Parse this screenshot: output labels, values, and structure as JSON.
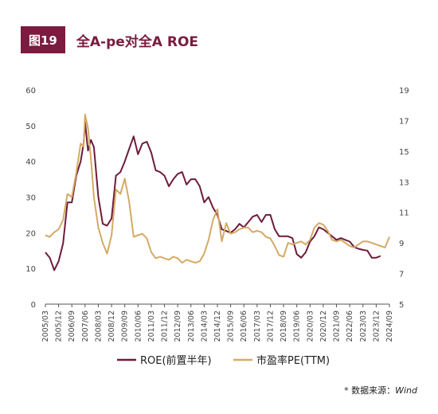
{
  "figure": {
    "badge": "图19",
    "title": "全A-pe对全A ROE",
    "source_prefix": "* 数据来源：",
    "source_name": "Wind"
  },
  "colors": {
    "accent": "#7a1b3f",
    "roe": "#6e1b3c",
    "pe": "#d4aa65"
  },
  "chart_data": {
    "type": "line",
    "title": "全A-pe对全A ROE",
    "grid": false,
    "legend_position": "bottom",
    "left_axis": {
      "ylim": [
        0,
        60
      ],
      "ticks": [
        0,
        10,
        20,
        30,
        40,
        50,
        60
      ]
    },
    "right_axis": {
      "ylim": [
        5,
        19
      ],
      "ticks": [
        5,
        7,
        9,
        11,
        13,
        15,
        17,
        19
      ]
    },
    "x_ticks": [
      "2005/03",
      "2005/12",
      "2006/09",
      "2007/06",
      "2008/03",
      "2008/12",
      "2009/09",
      "2010/06",
      "2011/03",
      "2011/12",
      "2012/09",
      "2013/06",
      "2014/03",
      "2014/12",
      "2015/09",
      "2016/06",
      "2017/03",
      "2017/12",
      "2018/09",
      "2019/06",
      "2020/03",
      "2020/12",
      "2021/09",
      "2022/06",
      "2023/03",
      "2023/12",
      "2024/09"
    ],
    "series": [
      {
        "name": "ROE(前置半年)",
        "axis": "left",
        "points": [
          [
            "2005/03",
            14.5
          ],
          [
            "2005/06",
            13
          ],
          [
            "2005/09",
            9.5
          ],
          [
            "2005/12",
            12
          ],
          [
            "2006/03",
            17
          ],
          [
            "2006/06",
            28.5
          ],
          [
            "2006/09",
            28.5
          ],
          [
            "2006/12",
            36
          ],
          [
            "2007/03",
            40
          ],
          [
            "2007/05",
            45
          ],
          [
            "2007/06",
            51
          ],
          [
            "2007/08",
            43
          ],
          [
            "2007/10",
            46
          ],
          [
            "2007/12",
            44
          ],
          [
            "2008/03",
            30
          ],
          [
            "2008/06",
            22.5
          ],
          [
            "2008/09",
            22
          ],
          [
            "2008/12",
            24
          ],
          [
            "2009/03",
            36
          ],
          [
            "2009/06",
            37
          ],
          [
            "2009/09",
            40
          ],
          [
            "2009/12",
            43.5
          ],
          [
            "2010/03",
            47
          ],
          [
            "2010/06",
            42
          ],
          [
            "2010/09",
            45
          ],
          [
            "2010/12",
            45.5
          ],
          [
            "2011/03",
            42.5
          ],
          [
            "2011/06",
            37.5
          ],
          [
            "2011/09",
            37
          ],
          [
            "2011/12",
            36
          ],
          [
            "2012/03",
            33
          ],
          [
            "2012/06",
            35
          ],
          [
            "2012/09",
            36.5
          ],
          [
            "2012/12",
            37
          ],
          [
            "2013/03",
            33.5
          ],
          [
            "2013/06",
            35
          ],
          [
            "2013/09",
            35
          ],
          [
            "2013/12",
            33
          ],
          [
            "2014/03",
            28.5
          ],
          [
            "2014/06",
            30
          ],
          [
            "2014/09",
            27
          ],
          [
            "2014/12",
            25
          ],
          [
            "2015/03",
            21
          ],
          [
            "2015/06",
            20.5
          ],
          [
            "2015/09",
            20
          ],
          [
            "2015/12",
            21
          ],
          [
            "2016/03",
            22.5
          ],
          [
            "2016/06",
            21.5
          ],
          [
            "2016/09",
            23
          ],
          [
            "2016/12",
            24.5
          ],
          [
            "2017/03",
            25
          ],
          [
            "2017/06",
            23
          ],
          [
            "2017/09",
            25
          ],
          [
            "2017/12",
            25
          ],
          [
            "2018/03",
            21
          ],
          [
            "2018/06",
            19
          ],
          [
            "2018/09",
            19
          ],
          [
            "2018/12",
            19
          ],
          [
            "2019/03",
            18.5
          ],
          [
            "2019/06",
            14
          ],
          [
            "2019/09",
            13
          ],
          [
            "2019/12",
            14.5
          ],
          [
            "2020/03",
            17.5
          ],
          [
            "2020/06",
            19
          ],
          [
            "2020/09",
            21.5
          ],
          [
            "2020/12",
            21
          ],
          [
            "2021/03",
            20
          ],
          [
            "2021/06",
            19
          ],
          [
            "2021/09",
            18
          ],
          [
            "2021/12",
            18.5
          ],
          [
            "2022/03",
            18
          ],
          [
            "2022/06",
            17.5
          ],
          [
            "2022/09",
            16
          ],
          [
            "2022/12",
            15.5
          ],
          [
            "2023/03",
            15.2
          ],
          [
            "2023/06",
            15
          ],
          [
            "2023/09",
            13
          ],
          [
            "2023/12",
            13
          ],
          [
            "2024/03",
            13.5
          ]
        ]
      },
      {
        "name": "市盈率PE(TTM)",
        "axis": "right",
        "points": [
          [
            "2005/03",
            9.5
          ],
          [
            "2005/06",
            9.4
          ],
          [
            "2005/09",
            9.7
          ],
          [
            "2005/12",
            9.9
          ],
          [
            "2006/03",
            10.5
          ],
          [
            "2006/06",
            12.2
          ],
          [
            "2006/09",
            12
          ],
          [
            "2006/12",
            13.6
          ],
          [
            "2007/03",
            15.5
          ],
          [
            "2007/05",
            15.3
          ],
          [
            "2007/06",
            17.4
          ],
          [
            "2007/08",
            16.5
          ],
          [
            "2007/10",
            14.5
          ],
          [
            "2007/12",
            12
          ],
          [
            "2008/03",
            10
          ],
          [
            "2008/06",
            9
          ],
          [
            "2008/09",
            8.3
          ],
          [
            "2008/12",
            9.5
          ],
          [
            "2009/03",
            12.5
          ],
          [
            "2009/06",
            12.2
          ],
          [
            "2009/09",
            13.2
          ],
          [
            "2009/12",
            11.7
          ],
          [
            "2010/03",
            9.4
          ],
          [
            "2010/06",
            9.5
          ],
          [
            "2010/09",
            9.6
          ],
          [
            "2010/12",
            9.3
          ],
          [
            "2011/03",
            8.4
          ],
          [
            "2011/06",
            8
          ],
          [
            "2011/09",
            8.1
          ],
          [
            "2011/12",
            8
          ],
          [
            "2012/03",
            7.9
          ],
          [
            "2012/06",
            8.1
          ],
          [
            "2012/09",
            8
          ],
          [
            "2012/12",
            7.7
          ],
          [
            "2013/03",
            7.9
          ],
          [
            "2013/06",
            7.8
          ],
          [
            "2013/09",
            7.7
          ],
          [
            "2013/12",
            7.8
          ],
          [
            "2014/03",
            8.3
          ],
          [
            "2014/06",
            9.2
          ],
          [
            "2014/09",
            10.5
          ],
          [
            "2014/12",
            11.2
          ],
          [
            "2015/03",
            9.1
          ],
          [
            "2015/06",
            10.3
          ],
          [
            "2015/09",
            9.6
          ],
          [
            "2015/12",
            9.7
          ],
          [
            "2016/03",
            9.9
          ],
          [
            "2016/06",
            10
          ],
          [
            "2016/09",
            10
          ],
          [
            "2016/12",
            9.7
          ],
          [
            "2017/03",
            9.8
          ],
          [
            "2017/06",
            9.7
          ],
          [
            "2017/09",
            9.4
          ],
          [
            "2017/12",
            9.3
          ],
          [
            "2018/03",
            8.8
          ],
          [
            "2018/06",
            8.2
          ],
          [
            "2018/09",
            8.1
          ],
          [
            "2018/12",
            9
          ],
          [
            "2019/03",
            8.9
          ],
          [
            "2019/06",
            9
          ],
          [
            "2019/09",
            9.1
          ],
          [
            "2019/12",
            8.9
          ],
          [
            "2020/03",
            9.2
          ],
          [
            "2020/06",
            10
          ],
          [
            "2020/09",
            10.3
          ],
          [
            "2020/12",
            10.2
          ],
          [
            "2021/03",
            9.8
          ],
          [
            "2021/06",
            9.2
          ],
          [
            "2021/09",
            9.1
          ],
          [
            "2021/12",
            9.2
          ],
          [
            "2022/03",
            9
          ],
          [
            "2022/06",
            8.8
          ],
          [
            "2022/09",
            8.7
          ],
          [
            "2022/12",
            8.9
          ],
          [
            "2023/03",
            9.1
          ],
          [
            "2023/06",
            9.1
          ],
          [
            "2023/09",
            9
          ],
          [
            "2023/12",
            8.9
          ],
          [
            "2024/03",
            8.8
          ],
          [
            "2024/06",
            8.7
          ],
          [
            "2024/09",
            9.4
          ]
        ]
      }
    ]
  }
}
